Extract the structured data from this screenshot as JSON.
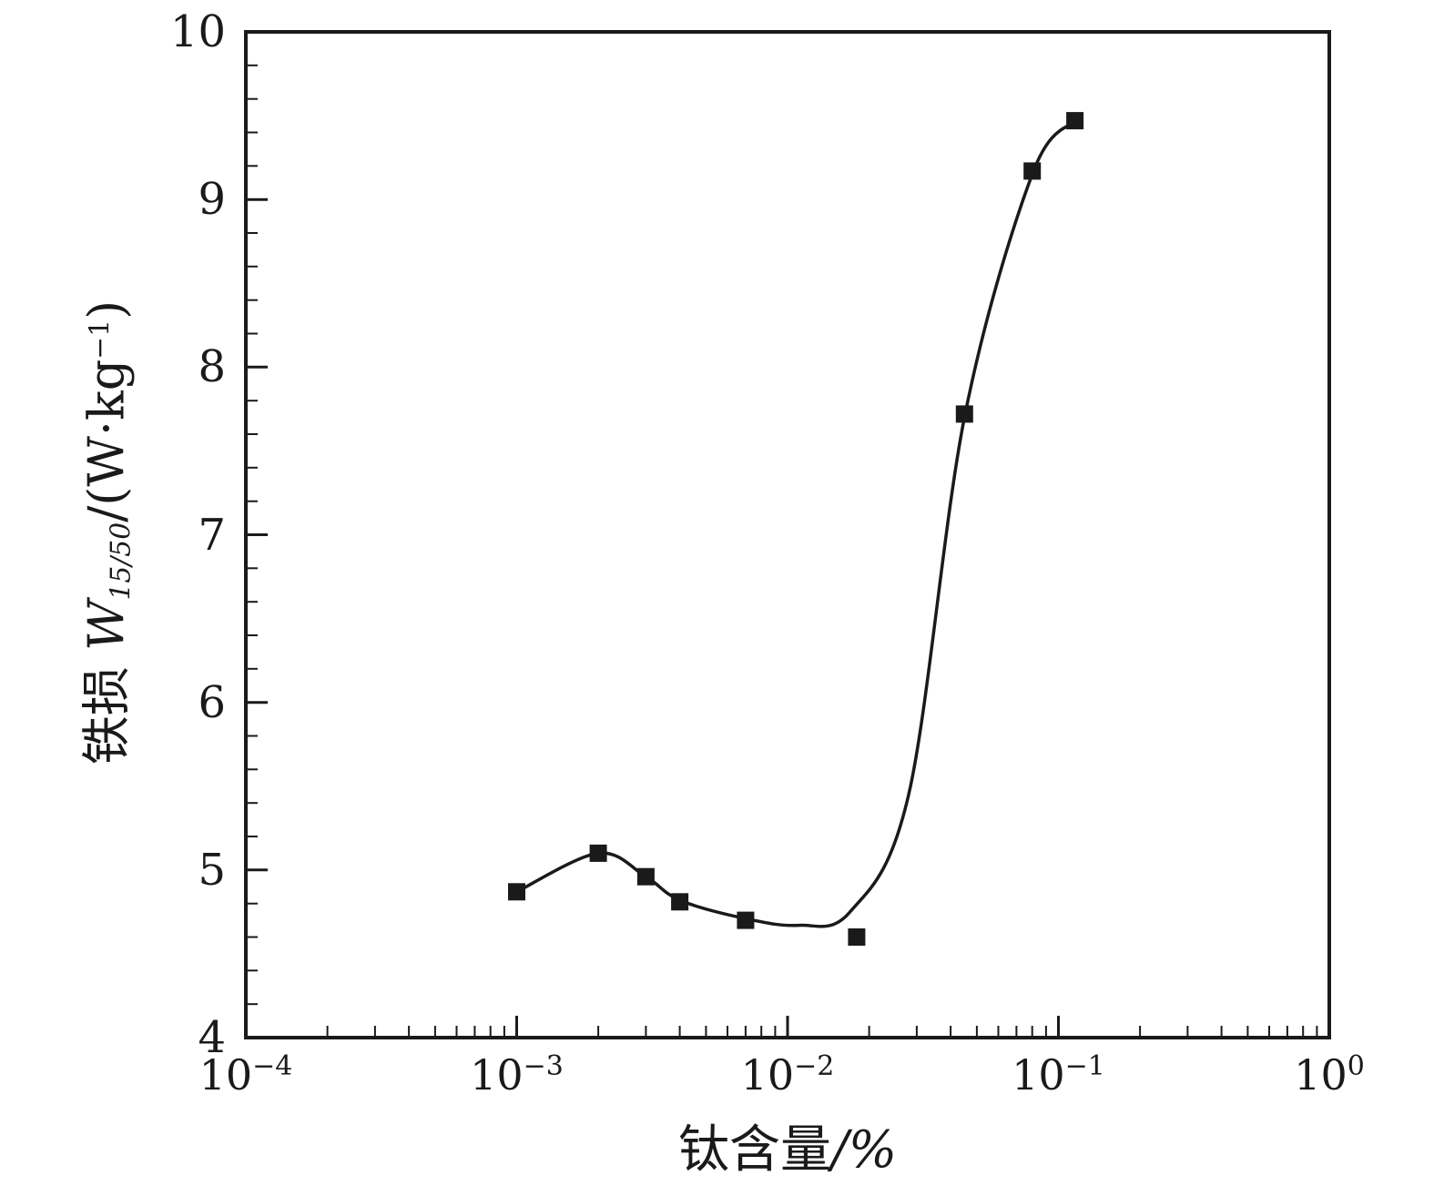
{
  "chart_data": {
    "type": "scatter",
    "title": "",
    "xlabel": "钛含量",
    "xlabel_unit": "/%",
    "ylabel": {
      "prefix": "铁损 ",
      "symbol": "W",
      "sub": "15/50",
      "unit": "/(W·kg",
      "sup": "−1",
      "close": ")"
    },
    "x_scale": "log",
    "xlim": [
      0.0001,
      1
    ],
    "ylim": [
      4,
      10
    ],
    "x_ticks": [
      {
        "base": "10",
        "exp": "−4",
        "value": 0.0001
      },
      {
        "base": "10",
        "exp": "−3",
        "value": 0.001
      },
      {
        "base": "10",
        "exp": "−2",
        "value": 0.01
      },
      {
        "base": "10",
        "exp": "−1",
        "value": 0.1
      },
      {
        "base": "10",
        "exp": "0",
        "value": 1
      }
    ],
    "y_ticks": [
      4,
      5,
      6,
      7,
      8,
      9,
      10
    ],
    "y_minor_step": 0.2,
    "grid": false,
    "legend": null,
    "colors": {
      "line": "#1a1a1a",
      "marker": "#1a1a1a",
      "axis": "#1a1a1a"
    },
    "series": [
      {
        "name": "W15/50",
        "marker": "square",
        "points": [
          {
            "x": 0.001,
            "y": 4.87
          },
          {
            "x": 0.002,
            "y": 5.1
          },
          {
            "x": 0.003,
            "y": 4.96
          },
          {
            "x": 0.004,
            "y": 4.81
          },
          {
            "x": 0.007,
            "y": 4.7
          },
          {
            "x": 0.018,
            "y": 4.6
          },
          {
            "x": 0.045,
            "y": 7.72
          },
          {
            "x": 0.08,
            "y": 9.17
          },
          {
            "x": 0.115,
            "y": 9.47
          }
        ]
      }
    ],
    "fit_curve": [
      {
        "x": 0.001,
        "y": 4.87
      },
      {
        "x": 0.002,
        "y": 5.1
      },
      {
        "x": 0.003,
        "y": 4.96
      },
      {
        "x": 0.004,
        "y": 4.82
      },
      {
        "x": 0.007,
        "y": 4.71
      },
      {
        "x": 0.011,
        "y": 4.67
      },
      {
        "x": 0.017,
        "y": 4.75
      },
      {
        "x": 0.028,
        "y": 5.45
      },
      {
        "x": 0.045,
        "y": 7.7
      },
      {
        "x": 0.08,
        "y": 9.15
      },
      {
        "x": 0.115,
        "y": 9.47
      }
    ]
  }
}
